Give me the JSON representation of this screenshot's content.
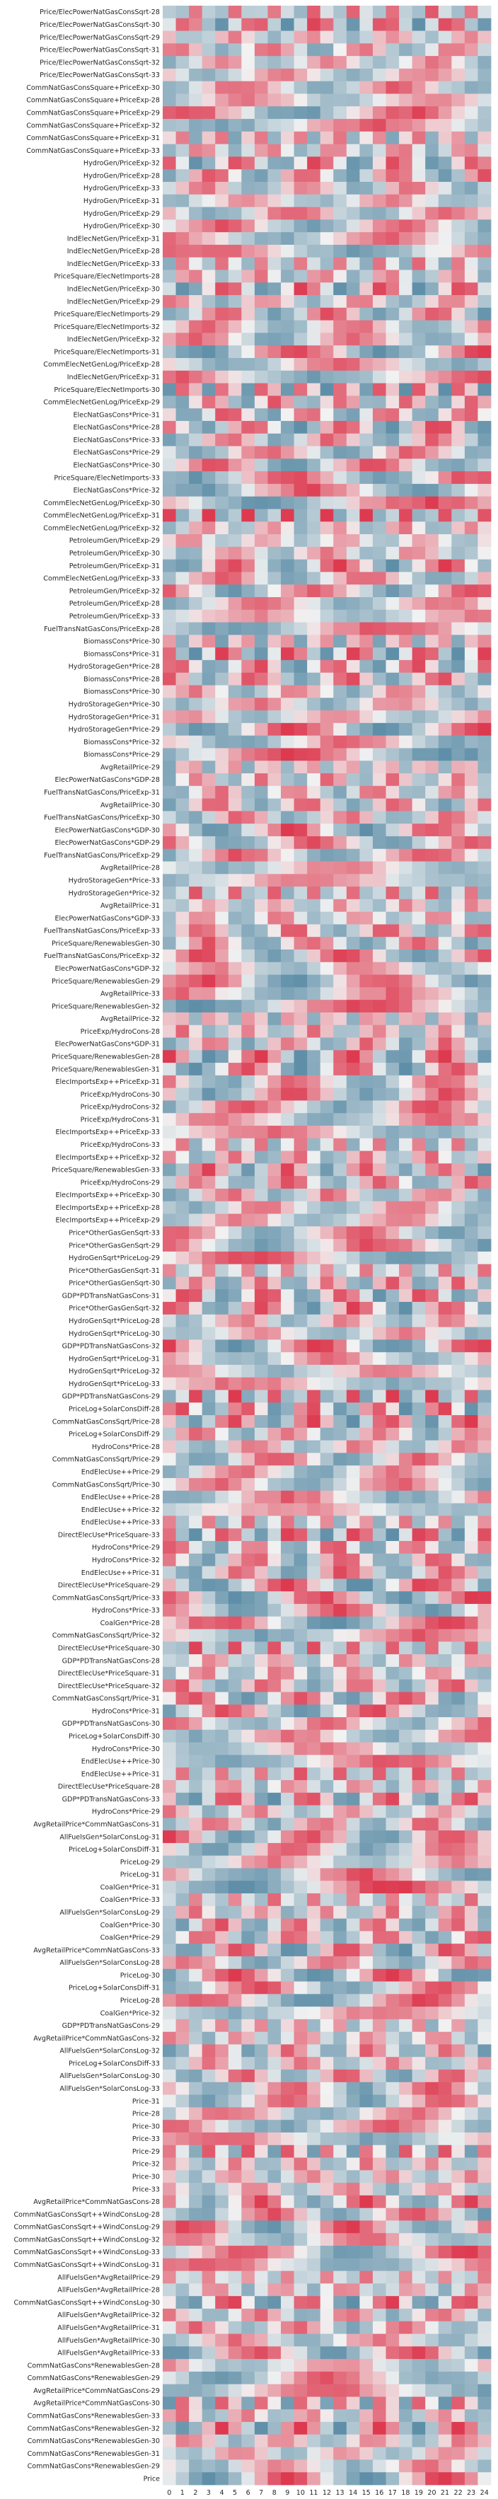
{
  "chart_data": {
    "type": "heatmap",
    "title": "",
    "xlabel": "",
    "ylabel": "",
    "columns": [
      "0",
      "1",
      "2",
      "3",
      "4",
      "5",
      "6",
      "7",
      "8",
      "9",
      "10",
      "11",
      "12",
      "13",
      "14",
      "15",
      "16",
      "17",
      "18",
      "19",
      "20",
      "21",
      "22",
      "23",
      "24"
    ],
    "rows": [
      "Price/ElecPowerNatGasConsSqrt-28",
      "Price/ElecPowerNatGasConsSqrt-30",
      "Price/ElecPowerNatGasConsSqrt-29",
      "Price/ElecPowerNatGasConsSqrt-31",
      "Price/ElecPowerNatGasConsSqrt-32",
      "Price/ElecPowerNatGasConsSqrt-33",
      "CommNatGasConsSquare+PriceExp-30",
      "CommNatGasConsSquare+PriceExp-28",
      "CommNatGasConsSquare+PriceExp-29",
      "CommNatGasConsSquare+PriceExp-32",
      "CommNatGasConsSquare+PriceExp-31",
      "CommNatGasConsSquare+PriceExp-33",
      "HydroGen/PriceExp-32",
      "HydroGen/PriceExp-28",
      "HydroGen/PriceExp-33",
      "HydroGen/PriceExp-31",
      "HydroGen/PriceExp-29",
      "HydroGen/PriceExp-30",
      "IndElecNetGen/PriceExp-31",
      "IndElecNetGen/PriceExp-28",
      "IndElecNetGen/PriceExp-33",
      "PriceSquare/ElecNetImports-28",
      "IndElecNetGen/PriceExp-30",
      "IndElecNetGen/PriceExp-29",
      "PriceSquare/ElecNetImports-29",
      "PriceSquare/ElecNetImports-32",
      "IndElecNetGen/PriceExp-32",
      "PriceSquare/ElecNetImports-31",
      "CommElecNetGenLog/PriceExp-28",
      "IndElecNetGen/PriceExp-31",
      "PriceSquare/ElecNetImports-30",
      "CommElecNetGenLog/PriceExp-29",
      "ElecNatGasCons*Price-31",
      "ElecNatGasCons*Price-28",
      "ElecNatGasCons*Price-33",
      "ElecNatGasCons*Price-29",
      "ElecNatGasCons*Price-30",
      "PriceSquare/ElecNetImports-33",
      "ElecNatGasCons*Price-32",
      "CommElecNetGenLog/PriceExp-30",
      "CommElecNetGenLog/PriceExp-31",
      "CommElecNetGenLog/PriceExp-32",
      "PetroleumGen/PriceExp-29",
      "PetroleumGen/PriceExp-30",
      "PetroleumGen/PriceExp-31",
      "CommElecNetGenLog/PriceExp-33",
      "PetroleumGen/PriceExp-32",
      "PetroleumGen/PriceExp-28",
      "PetroleumGen/PriceExp-33",
      "FuelTransNatGasCons/PriceExp-28",
      "BiomassCons*Price-30",
      "BiomassCons*Price-31",
      "HydroStorageGen*Price-28",
      "BiomassCons*Price-28",
      "BiomassCons*Price-30",
      "HydroStorageGen*Price-30",
      "HydroStorageGen*Price-31",
      "HydroStorageGen*Price-29",
      "BiomassCons*Price-32",
      "BiomassCons*Price-29",
      "AvgRetailPrice-29",
      "ElecPowerNatGasCons*GDP-28",
      "FuelTransNatGasCons/PriceExp-31",
      "AvgRetailPrice-30",
      "FuelTransNatGasCons/PriceExp-30",
      "ElecPowerNatGasCons*GDP-30",
      "ElecPowerNatGasCons*GDP-29",
      "FuelTransNatGasCons/PriceExp-29",
      "AvgRetailPrice-28",
      "HydroStorageGen*Price-33",
      "HydroStorageGen*Price-32",
      "AvgRetailPrice-31",
      "ElecPowerNatGasCons*GDP-33",
      "FuelTransNatGasCons/PriceExp-33",
      "PriceSquare/RenewablesGen-30",
      "FuelTransNatGasCons/PriceExp-32",
      "ElecPowerNatGasCons*GDP-32",
      "PriceSquare/RenewablesGen-29",
      "AvgRetailPrice-33",
      "PriceSquare/RenewablesGen-32",
      "AvgRetailPrice-32",
      "PriceExp/HydroCons-28",
      "ElecPowerNatGasCons*GDP-31",
      "PriceSquare/RenewablesGen-28",
      "PriceSquare/RenewablesGen-31",
      "ElecImportsExp++PriceExp-31",
      "PriceExp/HydroCons-30",
      "PriceExp/HydroCons-32",
      "PriceExp/HydroCons-31",
      "ElecImportsExp++PriceExp-33",
      "PriceExp/HydroCons-33",
      "ElecImportsExp++PriceExp-32",
      "PriceSquare/RenewablesGen-33",
      "PriceExp/HydroCons-29",
      "ElecImportsExp++PriceExp-30",
      "ElecImportsExp++PriceExp-28",
      "ElecImportsExp++PriceExp-29",
      "Price*OtherGasGenSqrt-33",
      "Price*OtherGasGenSqrt-29",
      "HydroGenSqrt*PriceLog-29",
      "Price*OtherGasGenSqrt-31",
      "Price*OtherGasGenSqrt-30",
      "GDP*PDTransNatGasCons-31",
      "Price*OtherGasGenSqrt-32",
      "HydroGenSqrt*PriceLog-28",
      "HydroGenSqrt*PriceLog-30",
      "GDP*PDTransNatGasCons-32",
      "HydroGenSqrt*PriceLog-31",
      "HydroGenSqrt*PriceLog-32",
      "HydroGenSqrt*PriceLog-33",
      "GDP*PDTransNatGasCons-29",
      "PriceLog+SolarConsDiff-28",
      "CommNatGasConsSqrt/Price-28",
      "PriceLog+SolarConsDiff-29",
      "HydroCons*Price-28",
      "CommNatGasConsSqrt/Price-29",
      "EndElecUse++Price-29",
      "CommNatGasConsSqrt/Price-30",
      "EndElecUse++Price-28",
      "EndElecUse++Price-32",
      "EndElecUse++Price-33",
      "DirectElecUse*PriceSquare-33",
      "HydroCons*Price-29",
      "HydroCons*Price-32",
      "EndElecUse++Price-31",
      "DirectElecUse*PriceSquare-29",
      "CommNatGasConsSqrt/Price-33",
      "HydroCons*Price-33",
      "CoalGen*Price-28",
      "CommNatGasConsSqrt/Price-32",
      "DirectElecUse*PriceSquare-30",
      "GDP*PDTransNatGasCons-28",
      "DirectElecUse*PriceSquare-31",
      "DirectElecUse*PriceSquare-32",
      "CommNatGasConsSqrt/Price-31",
      "HydroCons*Price-31",
      "GDP*PDTransNatGasCons-30",
      "PriceLog+SolarConsDiff-30",
      "HydroCons*Price-30",
      "EndElecUse++Price-30",
      "EndElecUse++Price-31",
      "DirectElecUse*PriceSquare-28",
      "GDP*PDTransNatGasCons-33",
      "HydroCons*Price-29",
      "AvgRetailPrice*CommNatGasCons-31",
      "AllFuelsGen*SolarConsLog-31",
      "PriceLog+SolarConsDiff-31",
      "PriceLog-29",
      "PriceLog-31",
      "CoalGen*Price-31",
      "CoalGen*Price-33",
      "AllFuelsGen*SolarConsLog-29",
      "CoalGen*Price-30",
      "CoalGen*Price-29",
      "AvgRetailPrice*CommNatGasCons-33",
      "AllFuelsGen*SolarConsLog-28",
      "PriceLog-30",
      "PriceLog+SolarConsDiff-31",
      "PriceLog-28",
      "CoalGen*Price-32",
      "GDP*PDTransNatGasCons-29",
      "AvgRetailPrice*CommNatGasCons-32",
      "AllFuelsGen*SolarConsLog-32",
      "PriceLog+SolarConsDiff-33",
      "AllFuelsGen*SolarConsLog-30",
      "AllFuelsGen*SolarConsLog-33",
      "Price-31",
      "Price-28",
      "Price-30",
      "Price-33",
      "Price-29",
      "Price-32",
      "Price-30",
      "Price-33",
      "AvgRetailPrice*CommNatGasCons-28",
      "CommNatGasConsSqrt++WindConsLog-28",
      "CommNatGasConsSqrt++WindConsLog-29",
      "CommNatGasConsSqrt++WindConsLog-32",
      "CommNatGasConsSqrt++WindConsLog-33",
      "CommNatGasConsSqrt++WindConsLog-31",
      "AllFuelsGen*AvgRetailPrice-29",
      "AllFuelsGen*AvgRetailPrice-28",
      "CommNatGasConsSqrt++WindConsLog-30",
      "AllFuelsGen*AvgRetailPrice-32",
      "AllFuelsGen*AvgRetailPrice-31",
      "AllFuelsGen*AvgRetailPrice-30",
      "AllFuelsGen*AvgRetailPrice-33",
      "CommNatGasCons*RenewablesGen-28",
      "CommNatGasCons*RenewablesGen-29",
      "AvgRetailPrice*CommNatGasCons-29",
      "AvgRetailPrice*CommNatGasCons-30",
      "CommNatGasCons*RenewablesGen-33",
      "CommNatGasCons*RenewablesGen-32",
      "CommNatGasCons*RenewablesGen-30",
      "CommNatGasCons*RenewablesGen-31",
      "CommNatGasCons*RenewablesGen-29",
      "Price"
    ],
    "pattern": {
      "periods": [
        3,
        5,
        6,
        7,
        8,
        11,
        12,
        14,
        17,
        24
      ],
      "note_values": "cell values unlabeled; diverging scale from blue (negative) to red (positive), range [-1, 1]"
    },
    "vmin": -1,
    "vmax": 1,
    "colormap": {
      "low": "#5f8fa8",
      "mid": "#f2f2f2",
      "high": "#dd3a50"
    },
    "grid": false,
    "legend": "none"
  }
}
